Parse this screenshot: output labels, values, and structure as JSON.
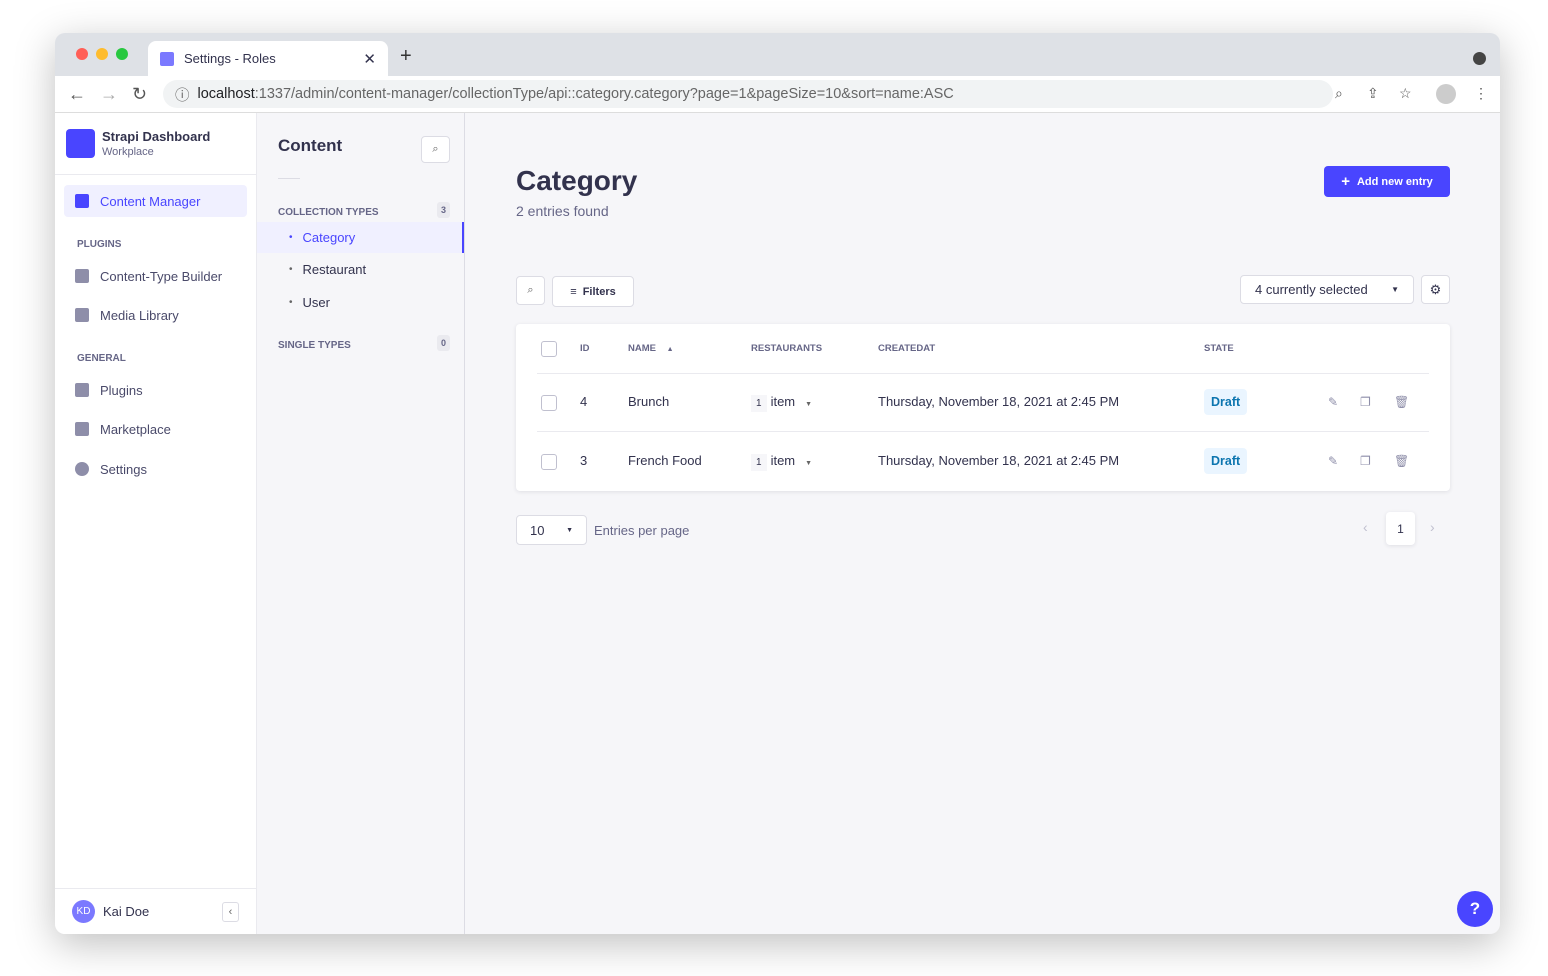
{
  "browser": {
    "tab_title": "Settings - Roles",
    "url_host": "localhost",
    "url_rest": ":1337/admin/content-manager/collectionType/api::category.category?page=1&pageSize=10&sort=name:ASC"
  },
  "nav": {
    "brand": "Strapi Dashboard",
    "workspace": "Workplace",
    "content_manager": "Content Manager",
    "plugins_label": "PLUGINS",
    "plugins_items": [
      "Content-Type Builder",
      "Media Library"
    ],
    "general_label": "GENERAL",
    "general_items": [
      "Plugins",
      "Marketplace",
      "Settings"
    ],
    "user_initials": "KD",
    "user_name": "Kai Doe"
  },
  "sub": {
    "title": "Content",
    "collection_label": "COLLECTION TYPES",
    "collection_count": "3",
    "collections": [
      "Category",
      "Restaurant",
      "User"
    ],
    "single_label": "SINGLE TYPES",
    "single_count": "0"
  },
  "main": {
    "title": "Category",
    "subtitle": "2 entries found",
    "add_label": "Add new entry",
    "filters_label": "Filters",
    "columns_selected": "4 currently selected",
    "headers": [
      "ID",
      "NAME",
      "RESTAURANTS",
      "CREATEDAT",
      "STATE"
    ],
    "rows": [
      {
        "id": "4",
        "name": "Brunch",
        "count": "1",
        "unit": "item",
        "created": "Thursday, November 18, 2021 at 2:45 PM",
        "state": "Draft"
      },
      {
        "id": "3",
        "name": "French Food",
        "count": "1",
        "unit": "item",
        "created": "Thursday, November 18, 2021 at 2:45 PM",
        "state": "Draft"
      }
    ],
    "page_size": "10",
    "per_page_label": "Entries per page",
    "current_page": "1"
  },
  "colors": {
    "accent": "#4945ff",
    "draft": "#0c75af"
  }
}
